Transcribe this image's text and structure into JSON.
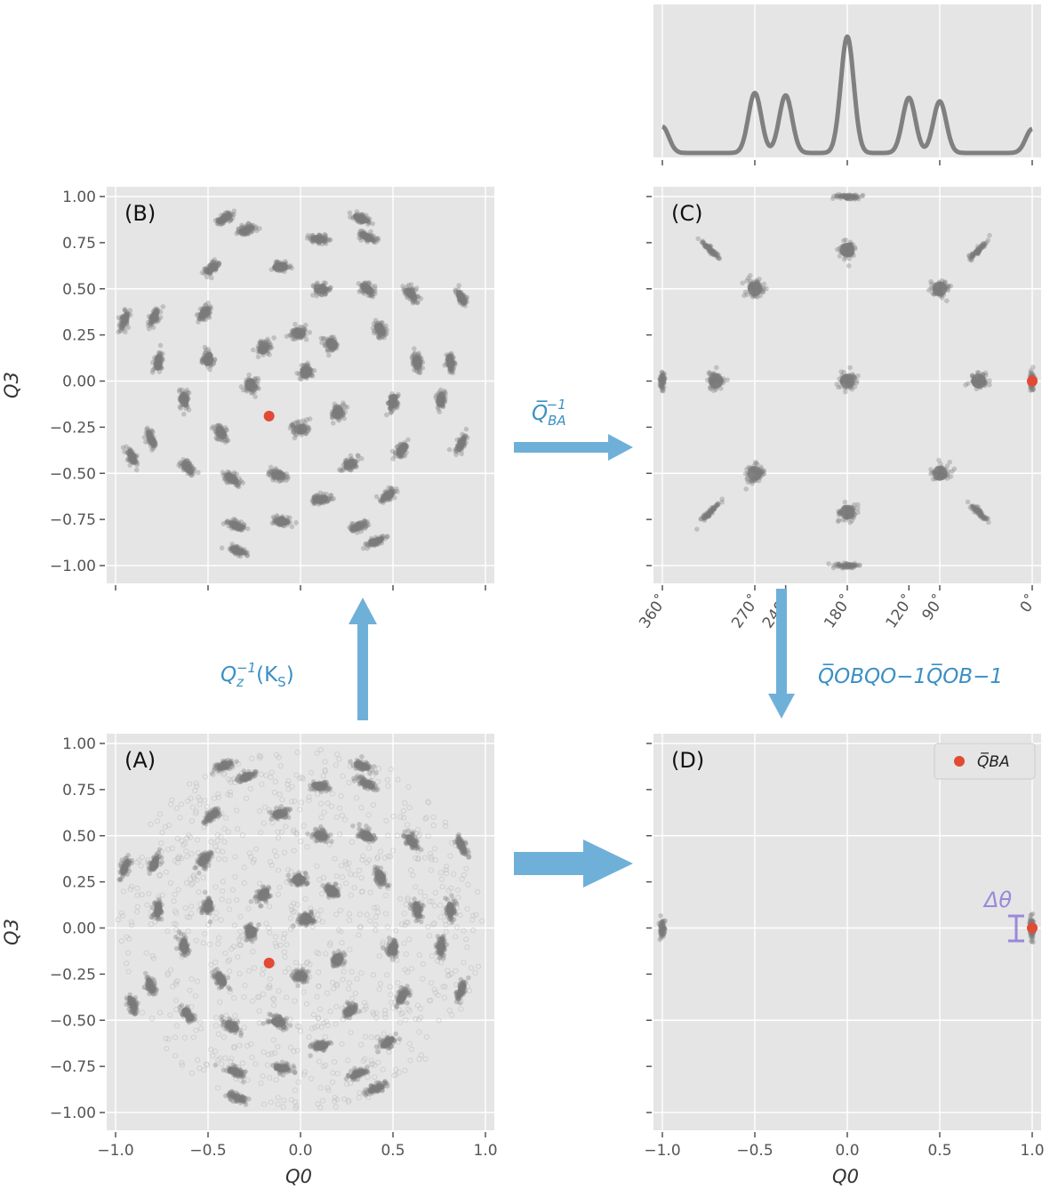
{
  "chart_data": [
    {
      "panel": "A",
      "type": "scatter",
      "label": "(A)",
      "xlabel": "Q0",
      "ylabel": "Q3",
      "xlim": [
        -1.05,
        1.05
      ],
      "ylim": [
        -1.05,
        1.05
      ],
      "xticks": [
        "−1.0",
        "−0.5",
        "0.0",
        "0.5",
        "1.0"
      ],
      "yticks": [
        "1.00",
        "0.75",
        "0.50",
        "0.25",
        "0.00",
        "−0.25",
        "−0.50",
        "−0.75",
        "−1.00"
      ],
      "grid": true,
      "background": "spread-points-in-unit-disk",
      "clusters": [
        [
          -0.41,
          0.88
        ],
        [
          0.33,
          0.88
        ],
        [
          -0.29,
          0.82
        ],
        [
          0.36,
          0.78
        ],
        [
          0.1,
          0.77
        ],
        [
          -0.48,
          0.61
        ],
        [
          -0.11,
          0.62
        ],
        [
          0.11,
          0.5
        ],
        [
          0.36,
          0.5
        ],
        [
          0.6,
          0.47
        ],
        [
          0.87,
          0.45
        ],
        [
          -0.95,
          0.33
        ],
        [
          -0.79,
          0.35
        ],
        [
          -0.52,
          0.37
        ],
        [
          -0.01,
          0.26
        ],
        [
          0.43,
          0.28
        ],
        [
          -0.2,
          0.18
        ],
        [
          0.17,
          0.2
        ],
        [
          -0.77,
          0.1
        ],
        [
          -0.5,
          0.12
        ],
        [
          0.63,
          0.1
        ],
        [
          0.81,
          0.1
        ],
        [
          -0.27,
          -0.02
        ],
        [
          0.03,
          0.05
        ],
        [
          -0.63,
          -0.1
        ],
        [
          0.2,
          -0.17
        ],
        [
          0.5,
          -0.11
        ],
        [
          0.76,
          -0.1
        ],
        [
          -0.81,
          -0.31
        ],
        [
          0.0,
          -0.26
        ],
        [
          -0.43,
          -0.28
        ],
        [
          0.55,
          -0.37
        ],
        [
          0.87,
          -0.34
        ],
        [
          -0.91,
          -0.41
        ],
        [
          0.27,
          -0.45
        ],
        [
          -0.61,
          -0.47
        ],
        [
          -0.37,
          -0.53
        ],
        [
          -0.12,
          -0.51
        ],
        [
          0.47,
          -0.62
        ],
        [
          0.11,
          -0.64
        ],
        [
          -0.35,
          -0.78
        ],
        [
          -0.1,
          -0.76
        ],
        [
          0.31,
          -0.79
        ],
        [
          -0.34,
          -0.92
        ],
        [
          0.41,
          -0.87
        ]
      ],
      "highlight": {
        "x": -0.17,
        "y": -0.19,
        "color": "#e24a33"
      }
    },
    {
      "panel": "B",
      "type": "scatter",
      "label": "(B)",
      "ylabel": "Q3",
      "xlim": [
        -1.05,
        1.05
      ],
      "ylim": [
        -1.05,
        1.05
      ],
      "yticks": [
        "1.00",
        "0.75",
        "0.50",
        "0.25",
        "0.00",
        "−0.25",
        "−0.50",
        "−0.75",
        "−1.00"
      ],
      "grid": true,
      "clusters": "same as panel A",
      "highlight": {
        "x": -0.17,
        "y": -0.19,
        "color": "#e24a33"
      }
    },
    {
      "panel": "C",
      "type": "scatter",
      "label": "(C)",
      "xlim": [
        -1.05,
        1.05
      ],
      "ylim": [
        -1.05,
        1.05
      ],
      "xticks": [
        "360˚",
        "270˚",
        "240˚",
        "180˚",
        "120˚",
        "90˚",
        "0˚"
      ],
      "grid": true,
      "clusters": [
        [
          0.0,
          1.0
        ],
        [
          0.0,
          -1.0
        ],
        [
          -0.74,
          0.71
        ],
        [
          0.71,
          0.71
        ],
        [
          -0.74,
          -0.71
        ],
        [
          0.71,
          -0.71
        ],
        [
          -0.5,
          0.5
        ],
        [
          0.5,
          0.5
        ],
        [
          -0.5,
          -0.5
        ],
        [
          0.5,
          -0.5
        ],
        [
          0.0,
          0.71
        ],
        [
          0.0,
          -0.71
        ],
        [
          -1.0,
          0.0
        ],
        [
          -0.71,
          0.0
        ],
        [
          0.0,
          0.0
        ],
        [
          0.71,
          0.0
        ],
        [
          1.0,
          0.0
        ]
      ],
      "highlight": {
        "x": 1.0,
        "y": 0.0,
        "color": "#e24a33"
      }
    },
    {
      "panel": "C-top",
      "type": "line",
      "x_degrees": [
        360,
        270,
        240,
        180,
        120,
        90,
        0
      ],
      "peak_heights": [
        0.22,
        0.5,
        0.48,
        0.97,
        0.46,
        0.43,
        0.2
      ],
      "line_color": "#808080"
    },
    {
      "panel": "D",
      "type": "scatter",
      "label": "(D)",
      "xlabel": "Q0",
      "xlim": [
        -1.05,
        1.05
      ],
      "ylim": [
        -1.05,
        1.05
      ],
      "xticks": [
        "−1.0",
        "−0.5",
        "0.0",
        "0.5",
        "1.0"
      ],
      "grid": true,
      "clusters": [
        [
          -1.0,
          0.0
        ],
        [
          1.0,
          0.0
        ]
      ],
      "highlight": {
        "x": 1.0,
        "y": 0.0,
        "color": "#e24a33"
      },
      "legend": {
        "label": "Q̅BA",
        "placement": "top-right"
      },
      "annotation": "Δθ"
    }
  ],
  "arrows": {
    "a_to_b": {
      "label_main": "Q",
      "label_sub": "z",
      "label_sup": "−1",
      "label_tail": "(K",
      "label_tail_sub": "S",
      "label_end": ")"
    },
    "b_to_c": {
      "label_main": "Q̅",
      "label_sub": "BA",
      "label_sup": "−1"
    },
    "c_to_d": {
      "label": "Q̅OBQO−1Q̅OB−1"
    },
    "a_to_d": {
      "label": ""
    }
  },
  "colors": {
    "panel_bg": "#e5e5e5",
    "grid": "#ffffff",
    "points": "#7a7a7a",
    "highlight": "#e24a33",
    "arrow": "#6fb0d9",
    "delta": "#9b88d9"
  }
}
